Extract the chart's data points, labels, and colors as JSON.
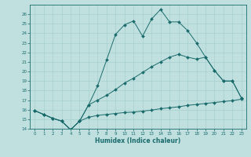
{
  "xlabel": "Humidex (Indice chaleur)",
  "bg_color": "#c0e0e0",
  "grid_color": "#a8d0d0",
  "line_color": "#1a6b6b",
  "xlim": [
    -0.5,
    23.5
  ],
  "ylim": [
    14,
    27
  ],
  "xticks": [
    0,
    1,
    2,
    3,
    4,
    5,
    6,
    7,
    8,
    9,
    10,
    11,
    12,
    13,
    14,
    15,
    16,
    17,
    18,
    19,
    20,
    21,
    22,
    23
  ],
  "yticks": [
    14,
    15,
    16,
    17,
    18,
    19,
    20,
    21,
    22,
    23,
    24,
    25,
    26
  ],
  "line1_x": [
    0,
    1,
    2,
    3,
    4,
    5,
    6,
    7,
    8,
    9,
    10,
    11,
    12,
    13,
    14,
    15,
    16,
    17,
    18,
    19,
    20,
    21,
    22,
    23
  ],
  "line1_y": [
    15.9,
    15.5,
    15.1,
    14.8,
    13.9,
    14.8,
    15.2,
    15.4,
    15.5,
    15.6,
    15.7,
    15.75,
    15.85,
    15.95,
    16.1,
    16.2,
    16.3,
    16.45,
    16.55,
    16.65,
    16.75,
    16.85,
    16.95,
    17.1
  ],
  "line2_x": [
    0,
    1,
    2,
    3,
    4,
    5,
    6,
    7,
    8,
    9,
    10,
    11,
    12,
    13,
    14,
    15,
    16,
    17,
    18,
    19,
    20,
    21,
    22,
    23
  ],
  "line2_y": [
    15.9,
    15.5,
    15.1,
    14.8,
    13.9,
    14.8,
    16.5,
    17.0,
    17.5,
    18.1,
    18.8,
    19.3,
    19.9,
    20.5,
    21.0,
    21.5,
    21.8,
    21.5,
    21.3,
    21.5,
    20.1,
    19.0,
    19.0,
    17.2
  ],
  "line3_x": [
    0,
    1,
    2,
    3,
    4,
    5,
    6,
    7,
    8,
    9,
    10,
    11,
    12,
    13,
    14,
    15,
    16,
    17,
    18,
    19,
    20,
    21,
    22,
    23
  ],
  "line3_y": [
    15.9,
    15.5,
    15.1,
    14.8,
    13.9,
    14.8,
    16.5,
    18.5,
    21.2,
    23.9,
    24.9,
    25.3,
    23.7,
    25.5,
    26.5,
    25.2,
    25.2,
    24.3,
    23.0,
    21.5,
    20.1,
    19.0,
    19.0,
    17.2
  ]
}
